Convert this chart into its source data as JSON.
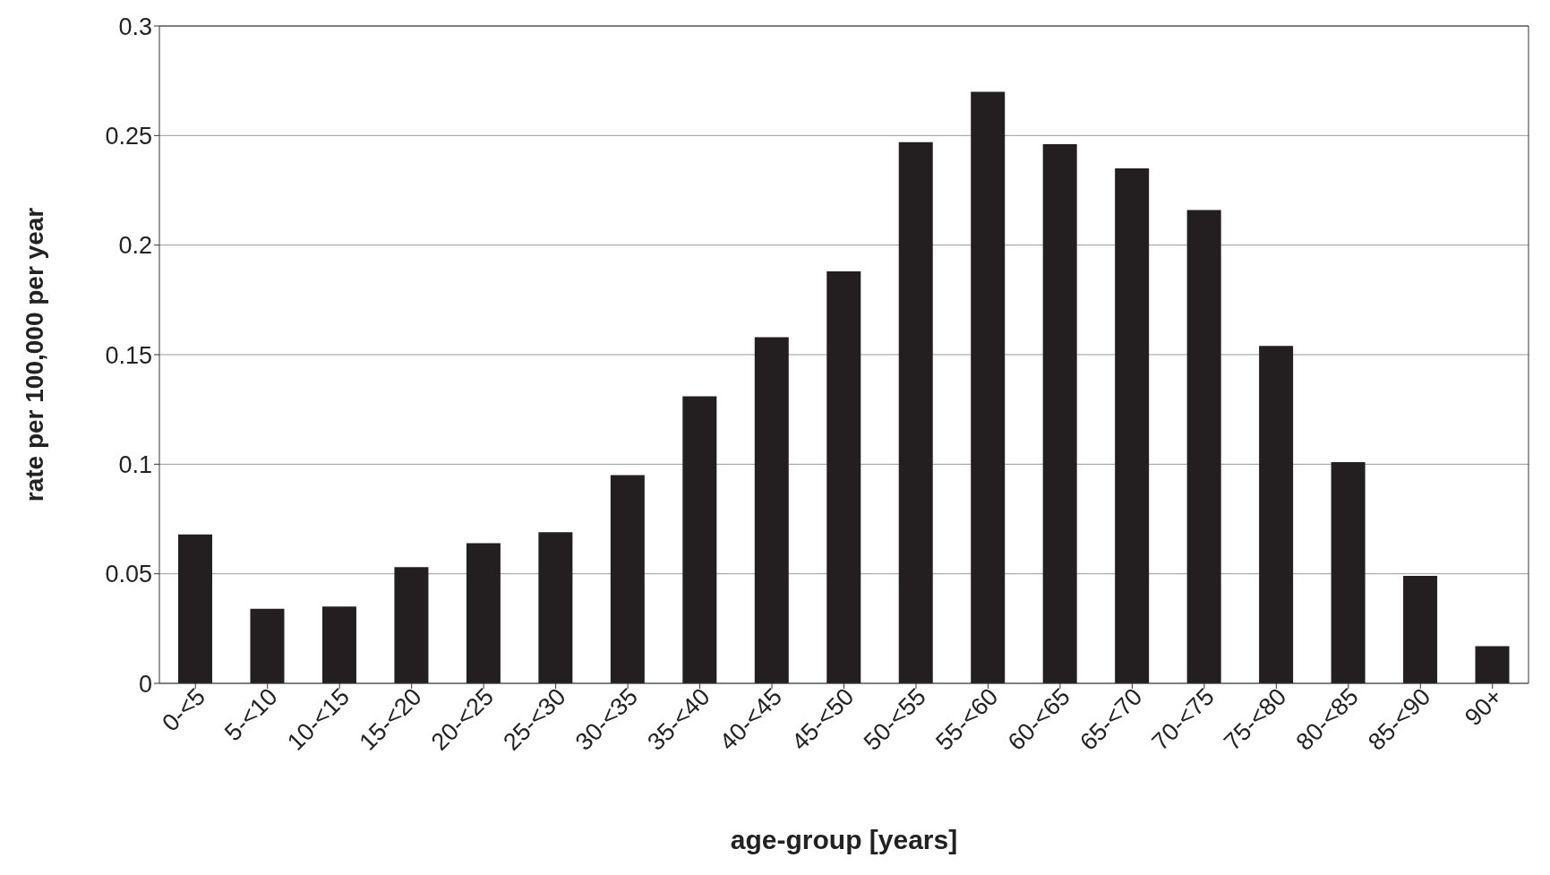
{
  "chart_data": {
    "type": "bar",
    "xlabel": "age-group [years]",
    "ylabel": "rate per 100,000 per year",
    "categories": [
      "0-<5",
      "5-<10",
      "10-<15",
      "15-<20",
      "20-<25",
      "25-<30",
      "30-<35",
      "35-<40",
      "40-<45",
      "45-<50",
      "50-<55",
      "55-<60",
      "60-<65",
      "65-<70",
      "70-<75",
      "75-<80",
      "80-<85",
      "85-<90",
      "90+"
    ],
    "values": [
      0.068,
      0.034,
      0.035,
      0.053,
      0.064,
      0.069,
      0.095,
      0.131,
      0.158,
      0.188,
      0.247,
      0.27,
      0.246,
      0.235,
      0.216,
      0.154,
      0.101,
      0.049,
      0.017
    ],
    "color": "#231f20",
    "ylim": [
      0,
      0.3
    ],
    "yticks": [
      0,
      0.05,
      0.1,
      0.15,
      0.2,
      0.25,
      0.3
    ],
    "grid": "y"
  }
}
